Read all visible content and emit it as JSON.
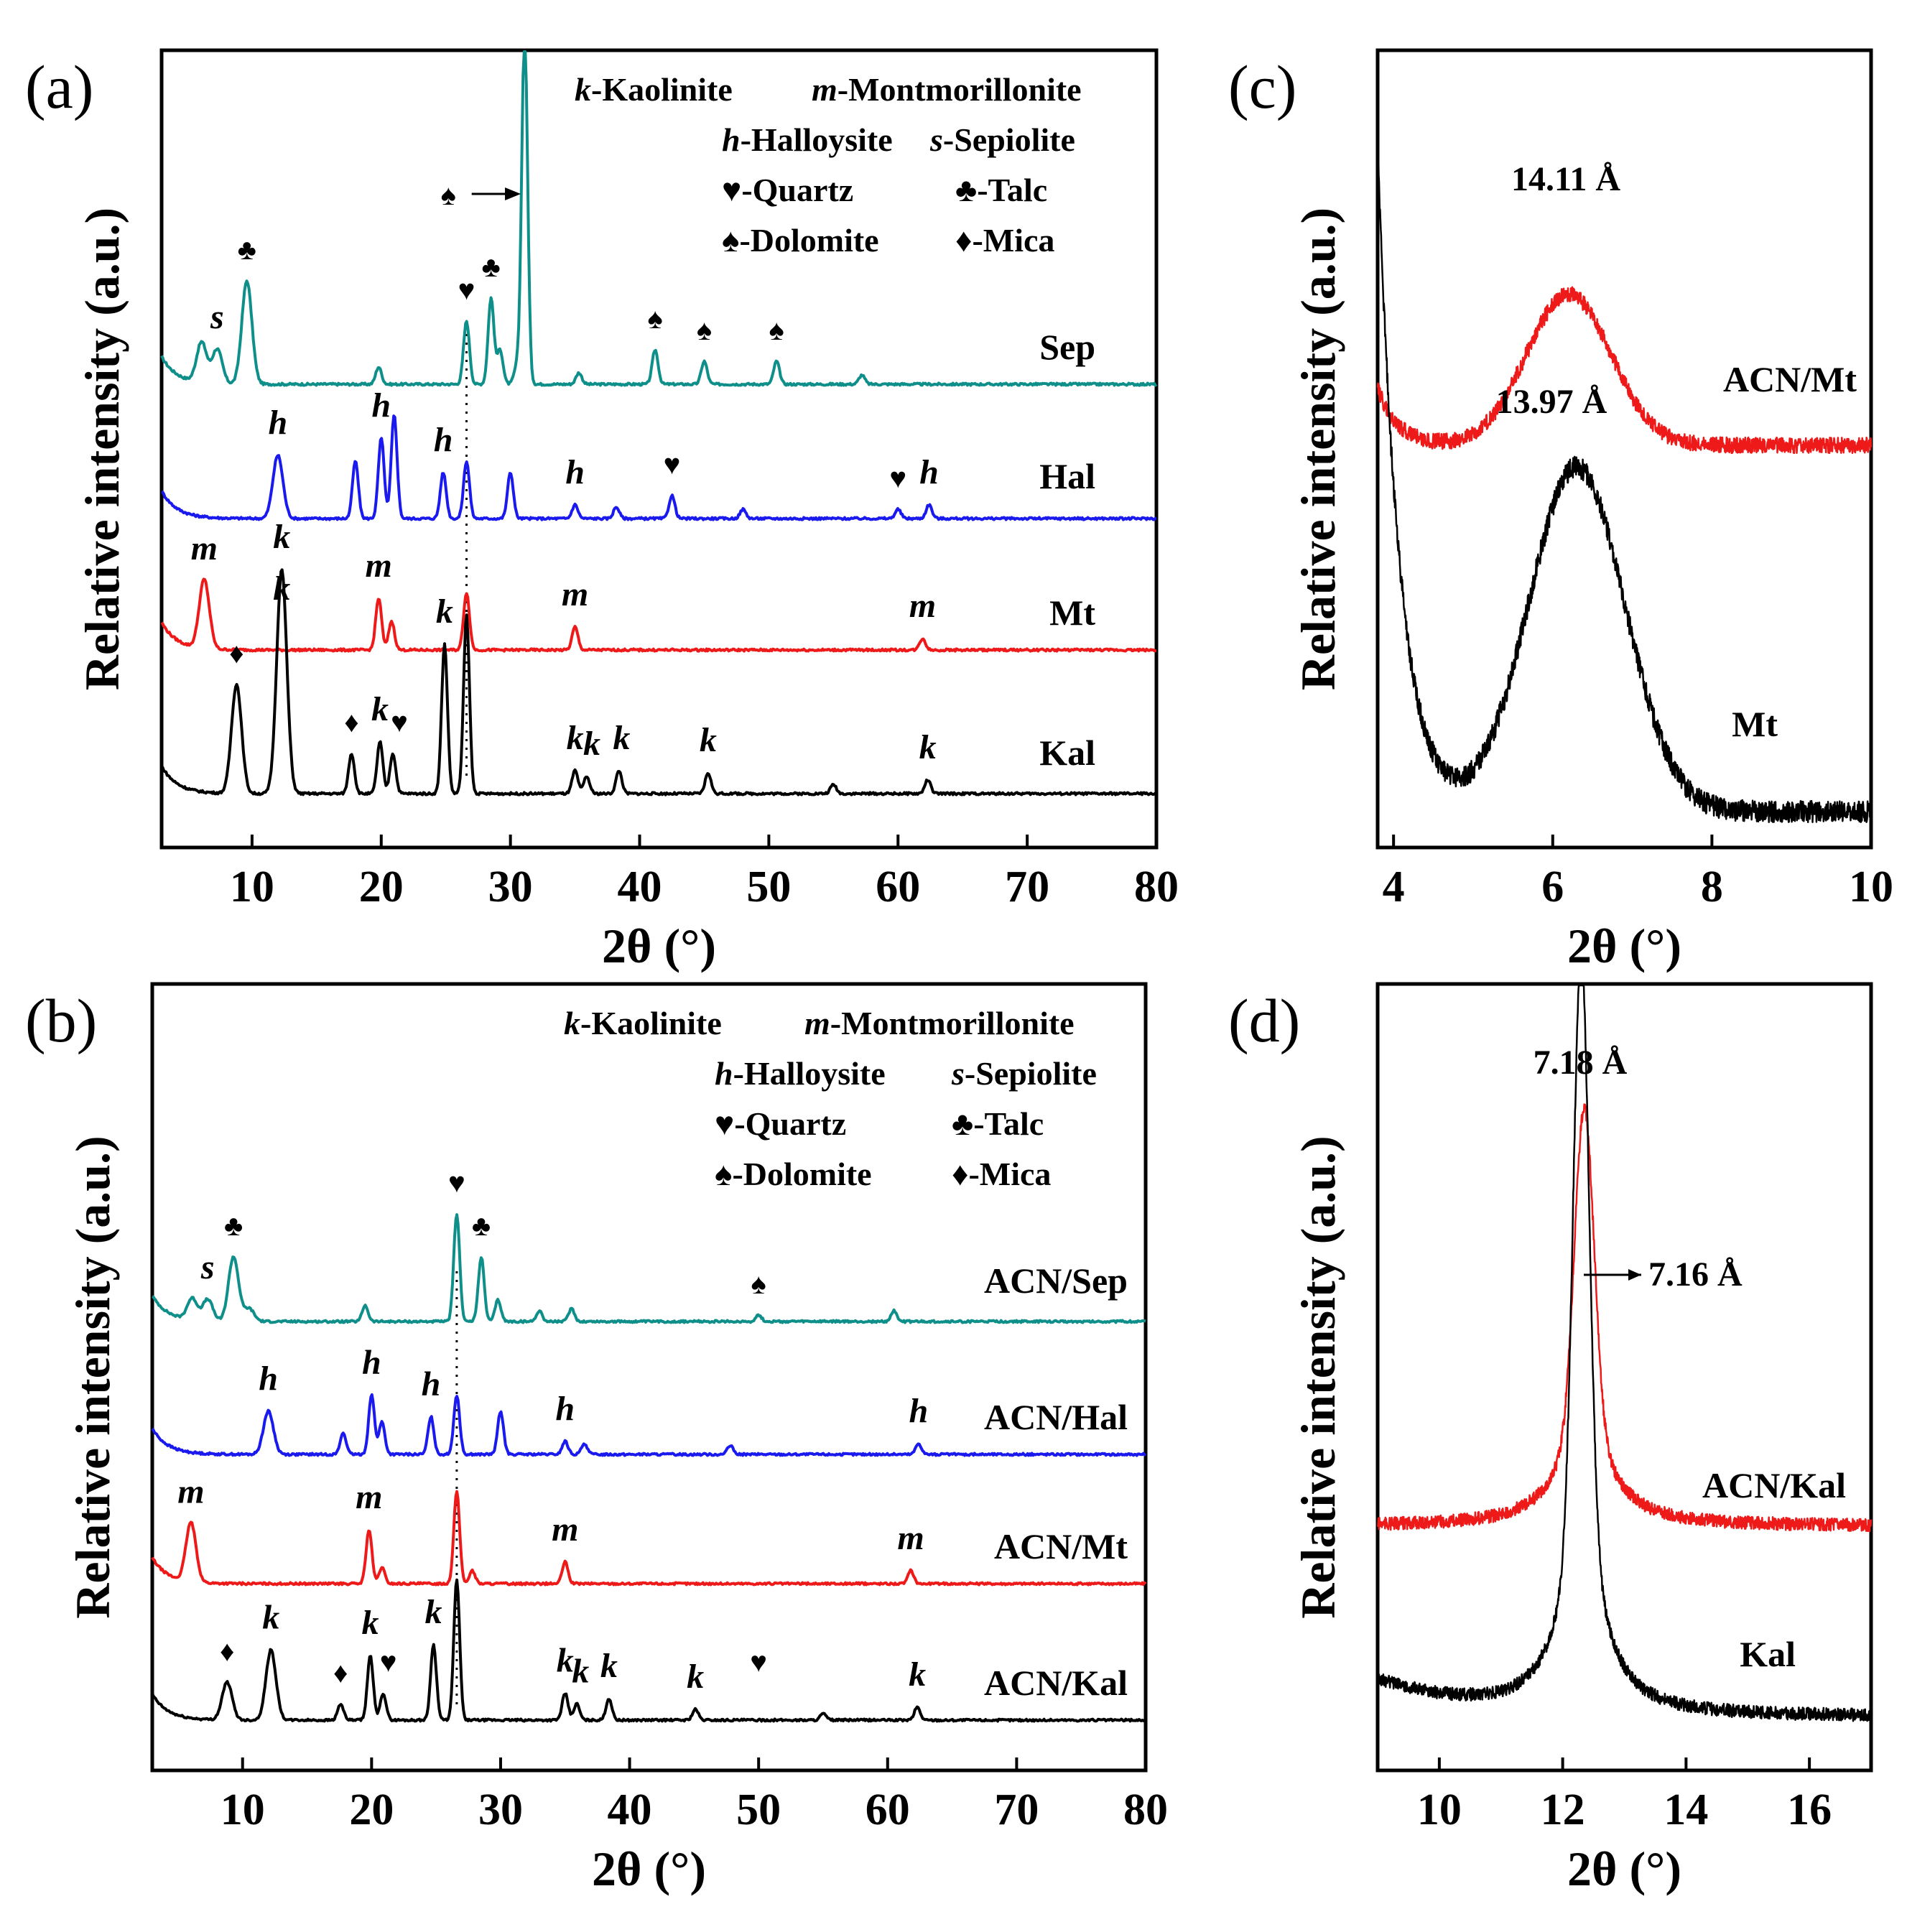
{
  "chart_data": [
    {
      "id": "a",
      "panel_label": "(a)",
      "type": "line",
      "xlabel": "2θ (°)",
      "ylabel": "Relative intensity (a.u.)",
      "xlim": [
        3,
        80
      ],
      "xticks": [
        "10",
        "20",
        "30",
        "40",
        "50",
        "60",
        "70",
        "80"
      ],
      "legend": [
        {
          "letter": "k",
          "text": "-Kaolinite"
        },
        {
          "letter": "m",
          "text": "-Montmorillonite"
        },
        {
          "letter": "h",
          "text": "-Halloysite"
        },
        {
          "letter": "s",
          "text": "-Sepiolite"
        },
        {
          "letter": "♥",
          "text": "-Quartz"
        },
        {
          "letter": "♣",
          "text": "-Talc"
        },
        {
          "letter": "♠",
          "text": "-Dolomite"
        },
        {
          "letter": "♦",
          "text": "-Mica"
        }
      ],
      "series": [
        {
          "name": "Sep",
          "color": "#0f8f8a",
          "peaks": [
            [
              6.1,
              0.35
            ],
            [
              7.3,
              0.3
            ],
            [
              9.6,
              0.9
            ],
            [
              19.8,
              0.15
            ],
            [
              26.6,
              0.55
            ],
            [
              28.5,
              0.75
            ],
            [
              29.2,
              0.3
            ],
            [
              30.5,
              0.15
            ],
            [
              31.1,
              3.1
            ],
            [
              35.3,
              0.1
            ],
            [
              41.2,
              0.3
            ],
            [
              45.0,
              0.2
            ],
            [
              50.6,
              0.2
            ],
            [
              57.2,
              0.08
            ]
          ],
          "markers": [
            {
              "x": 7.3,
              "t": "s"
            },
            {
              "x": 9.6,
              "t": "♣"
            },
            {
              "x": 26.6,
              "t": "♥"
            },
            {
              "x": 28.5,
              "t": "♣"
            },
            {
              "x": 41.2,
              "t": "♠"
            },
            {
              "x": 45.0,
              "t": "♠"
            },
            {
              "x": 50.6,
              "t": "♠"
            }
          ]
        },
        {
          "name": "Hal",
          "color": "#1a1aee",
          "peaks": [
            [
              12.0,
              0.55
            ],
            [
              18.0,
              0.5
            ],
            [
              20.0,
              0.7
            ],
            [
              21.0,
              0.9
            ],
            [
              24.8,
              0.4
            ],
            [
              26.6,
              0.5
            ],
            [
              30.0,
              0.4
            ],
            [
              35.0,
              0.12
            ],
            [
              38.2,
              0.1
            ],
            [
              42.5,
              0.2
            ],
            [
              48.0,
              0.08
            ],
            [
              60.0,
              0.08
            ],
            [
              62.4,
              0.12
            ]
          ],
          "markers": [
            {
              "x": 12.0,
              "t": "h"
            },
            {
              "x": 20.0,
              "t": "h"
            },
            {
              "x": 24.8,
              "t": "h"
            },
            {
              "x": 35.0,
              "t": "h"
            },
            {
              "x": 42.5,
              "t": "♥"
            },
            {
              "x": 60.0,
              "t": "♥"
            },
            {
              "x": 62.4,
              "t": "h"
            }
          ]
        },
        {
          "name": "Mt",
          "color": "#ee1a1a",
          "peaks": [
            [
              6.3,
              0.6
            ],
            [
              19.8,
              0.45
            ],
            [
              20.8,
              0.25
            ],
            [
              26.6,
              0.5
            ],
            [
              35.0,
              0.2
            ],
            [
              61.9,
              0.1
            ]
          ],
          "markers": [
            {
              "x": 6.3,
              "t": "m"
            },
            {
              "x": 12.3,
              "t": "k"
            },
            {
              "x": 19.8,
              "t": "m"
            },
            {
              "x": 35.0,
              "t": "m"
            },
            {
              "x": 61.9,
              "t": "m"
            }
          ]
        },
        {
          "name": "Kal",
          "color": "#000000",
          "peaks": [
            [
              8.8,
              0.95
            ],
            [
              12.3,
              1.95
            ],
            [
              17.7,
              0.35
            ],
            [
              19.9,
              0.45
            ],
            [
              20.9,
              0.35
            ],
            [
              24.9,
              1.3
            ],
            [
              26.6,
              1.55
            ],
            [
              35.0,
              0.2
            ],
            [
              35.9,
              0.15
            ],
            [
              38.4,
              0.2
            ],
            [
              45.3,
              0.18
            ],
            [
              55.0,
              0.08
            ],
            [
              62.3,
              0.12
            ]
          ],
          "markers": [
            {
              "x": 8.8,
              "t": "♦"
            },
            {
              "x": 12.3,
              "t": "k"
            },
            {
              "x": 17.7,
              "t": "♦"
            },
            {
              "x": 19.9,
              "t": "k"
            },
            {
              "x": 21.4,
              "t": "♥"
            },
            {
              "x": 24.9,
              "t": "k"
            },
            {
              "x": 35.0,
              "t": "k"
            },
            {
              "x": 36.3,
              "t": "k"
            },
            {
              "x": 38.6,
              "t": "k"
            },
            {
              "x": 45.3,
              "t": "k"
            },
            {
              "x": 62.3,
              "t": "k"
            }
          ]
        }
      ]
    },
    {
      "id": "b",
      "panel_label": "(b)",
      "type": "line",
      "xlabel": "2θ (°)",
      "ylabel": "Relative intensity (a.u.)",
      "xlim": [
        3,
        80
      ],
      "xticks": [
        "10",
        "20",
        "30",
        "40",
        "50",
        "60",
        "70",
        "80"
      ],
      "legend": [
        {
          "letter": "k",
          "text": "-Kaolinite"
        },
        {
          "letter": "m",
          "text": "-Montmorillonite"
        },
        {
          "letter": "h",
          "text": "-Halloysite"
        },
        {
          "letter": "s",
          "text": "-Sepiolite"
        },
        {
          "letter": "♥",
          "text": "-Quartz"
        },
        {
          "letter": "♣",
          "text": "-Talc"
        },
        {
          "letter": "♠",
          "text": "-Dolomite"
        },
        {
          "letter": "♦",
          "text": "-Mica"
        }
      ],
      "series": [
        {
          "name": "ACN/Sep",
          "color": "#0f8f8a",
          "peaks": [
            [
              6.1,
              0.2
            ],
            [
              7.3,
              0.2
            ],
            [
              9.3,
              0.6
            ],
            [
              10.5,
              0.12
            ],
            [
              19.5,
              0.15
            ],
            [
              26.6,
              1.0
            ],
            [
              28.5,
              0.6
            ],
            [
              29.8,
              0.2
            ],
            [
              33.0,
              0.1
            ],
            [
              35.5,
              0.12
            ],
            [
              50.0,
              0.06
            ],
            [
              60.5,
              0.1
            ]
          ],
          "markers": [
            {
              "x": 7.3,
              "t": "s"
            },
            {
              "x": 9.3,
              "t": "♣"
            },
            {
              "x": 26.6,
              "t": "♥"
            },
            {
              "x": 28.5,
              "t": "♣"
            },
            {
              "x": 50.0,
              "t": "♠"
            }
          ]
        },
        {
          "name": "ACN/Hal",
          "color": "#1a1aee",
          "peaks": [
            [
              12.0,
              0.4
            ],
            [
              17.8,
              0.2
            ],
            [
              20.0,
              0.55
            ],
            [
              20.8,
              0.3
            ],
            [
              24.6,
              0.35
            ],
            [
              26.6,
              0.55
            ],
            [
              30.0,
              0.4
            ],
            [
              35.0,
              0.12
            ],
            [
              36.5,
              0.1
            ],
            [
              47.8,
              0.08
            ],
            [
              62.4,
              0.1
            ]
          ],
          "markers": [
            {
              "x": 12.0,
              "t": "h"
            },
            {
              "x": 20.0,
              "t": "h"
            },
            {
              "x": 24.6,
              "t": "h"
            },
            {
              "x": 35.0,
              "t": "h"
            },
            {
              "x": 62.4,
              "t": "h"
            }
          ]
        },
        {
          "name": "ACN/Mt",
          "color": "#ee1a1a",
          "peaks": [
            [
              6.0,
              0.55
            ],
            [
              19.8,
              0.5
            ],
            [
              20.8,
              0.15
            ],
            [
              26.6,
              0.85
            ],
            [
              27.8,
              0.12
            ],
            [
              35.0,
              0.2
            ],
            [
              61.8,
              0.12
            ]
          ],
          "markers": [
            {
              "x": 6.0,
              "t": "m"
            },
            {
              "x": 19.8,
              "t": "m"
            },
            {
              "x": 35.0,
              "t": "m"
            },
            {
              "x": 61.8,
              "t": "m"
            }
          ]
        },
        {
          "name": "ACN/Kal",
          "color": "#000000",
          "peaks": [
            [
              8.8,
              0.35
            ],
            [
              12.2,
              0.65
            ],
            [
              17.6,
              0.15
            ],
            [
              19.9,
              0.6
            ],
            [
              20.9,
              0.25
            ],
            [
              24.8,
              0.7
            ],
            [
              26.6,
              1.3
            ],
            [
              35.0,
              0.25
            ],
            [
              35.9,
              0.15
            ],
            [
              38.4,
              0.2
            ],
            [
              45.1,
              0.1
            ],
            [
              55.0,
              0.06
            ],
            [
              62.3,
              0.12
            ]
          ],
          "markers": [
            {
              "x": 8.8,
              "t": "♦"
            },
            {
              "x": 12.2,
              "t": "k"
            },
            {
              "x": 17.6,
              "t": "♦"
            },
            {
              "x": 19.9,
              "t": "k"
            },
            {
              "x": 21.3,
              "t": "♥"
            },
            {
              "x": 24.8,
              "t": "k"
            },
            {
              "x": 35.0,
              "t": "k"
            },
            {
              "x": 36.2,
              "t": "k"
            },
            {
              "x": 38.4,
              "t": "k"
            },
            {
              "x": 45.1,
              "t": "k"
            },
            {
              "x": 50.0,
              "t": "♥"
            },
            {
              "x": 62.3,
              "t": "k"
            }
          ]
        }
      ]
    },
    {
      "id": "c",
      "panel_label": "(c)",
      "type": "line",
      "xlabel": "2θ (°)",
      "ylabel": "Relative intensity (a.u.)",
      "xlim": [
        3.8,
        10
      ],
      "xticks": [
        "4",
        "6",
        "8",
        "10"
      ],
      "annotations": [
        {
          "text": "14.11 Å",
          "x": 6.2
        },
        {
          "text": "13.97 Å",
          "x": 6.3
        }
      ],
      "series": [
        {
          "name": "ACN/Mt",
          "color": "#ee1a1a",
          "peak_x": 6.2
        },
        {
          "name": "Mt",
          "color": "#000000",
          "peak_x": 6.3
        }
      ]
    },
    {
      "id": "d",
      "panel_label": "(d)",
      "type": "line",
      "xlabel": "2θ (°)",
      "ylabel": "Relative intensity (a.u.)",
      "xlim": [
        9,
        17
      ],
      "xticks": [
        "10",
        "12",
        "14",
        "16"
      ],
      "annotations": [
        {
          "text": "7.18 Å",
          "x": 12.3
        },
        {
          "text": "7.16 Å",
          "x": 12.35
        }
      ],
      "series": [
        {
          "name": "ACN/Kal",
          "color": "#ee1a1a",
          "peak_x": 12.35
        },
        {
          "name": "Kal",
          "color": "#000000",
          "peak_x": 12.3
        }
      ]
    }
  ]
}
